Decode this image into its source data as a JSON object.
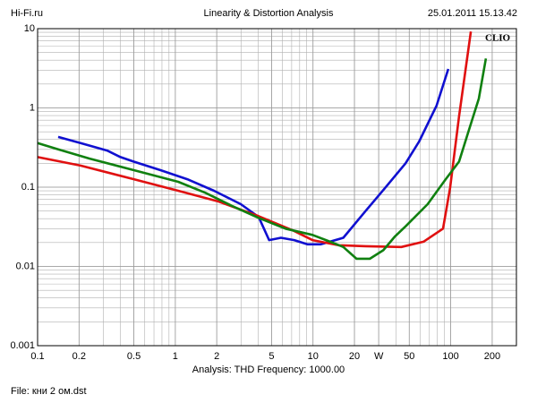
{
  "chart_data": {
    "type": "line",
    "header_left": "Hi-Fi.ru",
    "title": "Linearity & Distortion Analysis",
    "header_right": "25.01.2011 15.13.42",
    "brand": "CLIO",
    "subtitle": "Analysis: THD   Frequency: 1000.00",
    "file": "File: кни 2 ом.dst",
    "xscale": "log",
    "yscale": "log",
    "grid": true,
    "xlim": [
      0.1,
      300
    ],
    "ylim": [
      0.001,
      10
    ],
    "xticks": [
      0.1,
      0.2,
      0.5,
      1,
      2,
      5,
      10,
      20,
      {
        "value": 30,
        "label": "W"
      },
      50,
      100,
      200
    ],
    "yticks": [
      0.001,
      0.01,
      0.1,
      1,
      10
    ],
    "series": [
      {
        "name": "blue",
        "color": "#1010d0",
        "x": [
          0.141,
          0.205,
          0.32,
          0.4,
          0.5,
          0.78,
          1.22,
          1.91,
          2.99,
          4.03,
          4.8,
          5.85,
          7.3,
          9.1,
          11.4,
          16.6,
          24.1,
          32.4,
          47,
          59,
          79,
          96
        ],
        "values": [
          0.43,
          0.36,
          0.29,
          0.24,
          0.21,
          0.164,
          0.126,
          0.09,
          0.061,
          0.042,
          0.0215,
          0.023,
          0.0215,
          0.019,
          0.019,
          0.023,
          0.05,
          0.092,
          0.2,
          0.377,
          1.07,
          3.1
        ]
      },
      {
        "name": "red",
        "color": "#e01010",
        "x": [
          0.1,
          0.205,
          0.5,
          1.05,
          2.06,
          4.03,
          7.3,
          9.9,
          15.4,
          24.1,
          43.8,
          63.5,
          88,
          99,
          115,
          140
        ],
        "values": [
          0.24,
          0.187,
          0.126,
          0.09,
          0.066,
          0.043,
          0.028,
          0.0215,
          0.0185,
          0.018,
          0.0176,
          0.0205,
          0.03,
          0.098,
          0.78,
          9.2
        ]
      },
      {
        "name": "green",
        "color": "#108010",
        "x": [
          0.1,
          0.141,
          0.237,
          0.5,
          1.05,
          1.65,
          2.58,
          4.03,
          6.3,
          9.9,
          13.3,
          16.6,
          20.7,
          25.9,
          32.4,
          39.4,
          47,
          68,
          92,
          115,
          134,
          160,
          180
        ],
        "values": [
          0.36,
          0.3,
          0.23,
          0.164,
          0.117,
          0.085,
          0.058,
          0.041,
          0.03,
          0.025,
          0.0205,
          0.0176,
          0.0125,
          0.0125,
          0.016,
          0.024,
          0.032,
          0.061,
          0.126,
          0.21,
          0.49,
          1.31,
          4.2
        ]
      }
    ]
  }
}
